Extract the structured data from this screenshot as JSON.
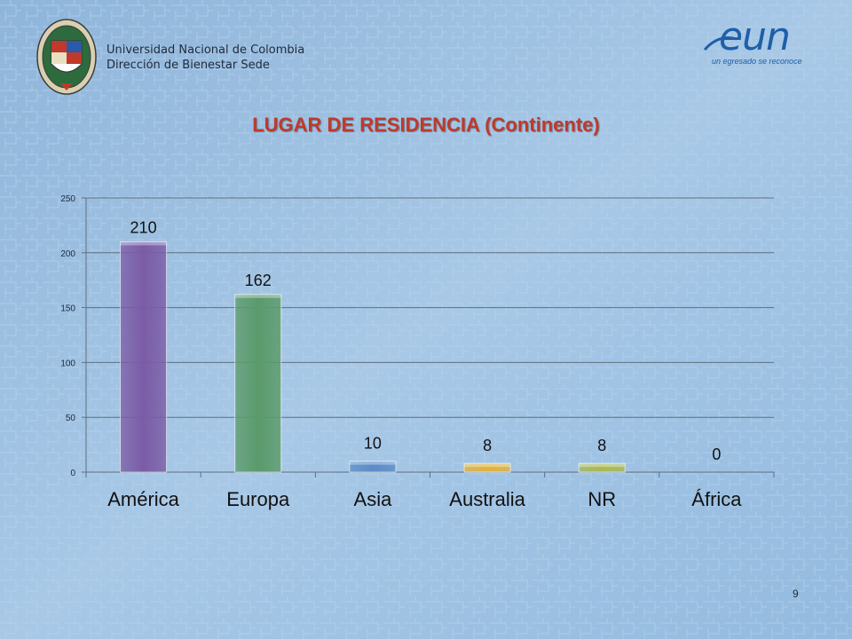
{
  "header": {
    "institution": "Universidad Nacional de Colombia",
    "department": "Dirección de Bienestar Sede"
  },
  "logo": {
    "word": "eun",
    "tagline": "un egresado se reconoce"
  },
  "page_number": "9",
  "chart_data": {
    "type": "bar",
    "title": "LUGAR DE RESIDENCIA (Continente)",
    "categories": [
      "América",
      "Europa",
      "Asia",
      "Australia",
      "NR",
      "África"
    ],
    "values": [
      210,
      162,
      10,
      8,
      8,
      0
    ],
    "data_labels": [
      "210",
      "162",
      "10",
      "8",
      "8",
      "0"
    ],
    "colors": [
      "#7b5ca6",
      "#5a9a6a",
      "#5b8cc8",
      "#e3b23a",
      "#a9b953",
      "#cfcfcf"
    ],
    "ylim": [
      0,
      250
    ],
    "yticks": [
      0,
      50,
      100,
      150,
      200,
      250
    ],
    "grid": true,
    "xlabel": "",
    "ylabel": ""
  }
}
